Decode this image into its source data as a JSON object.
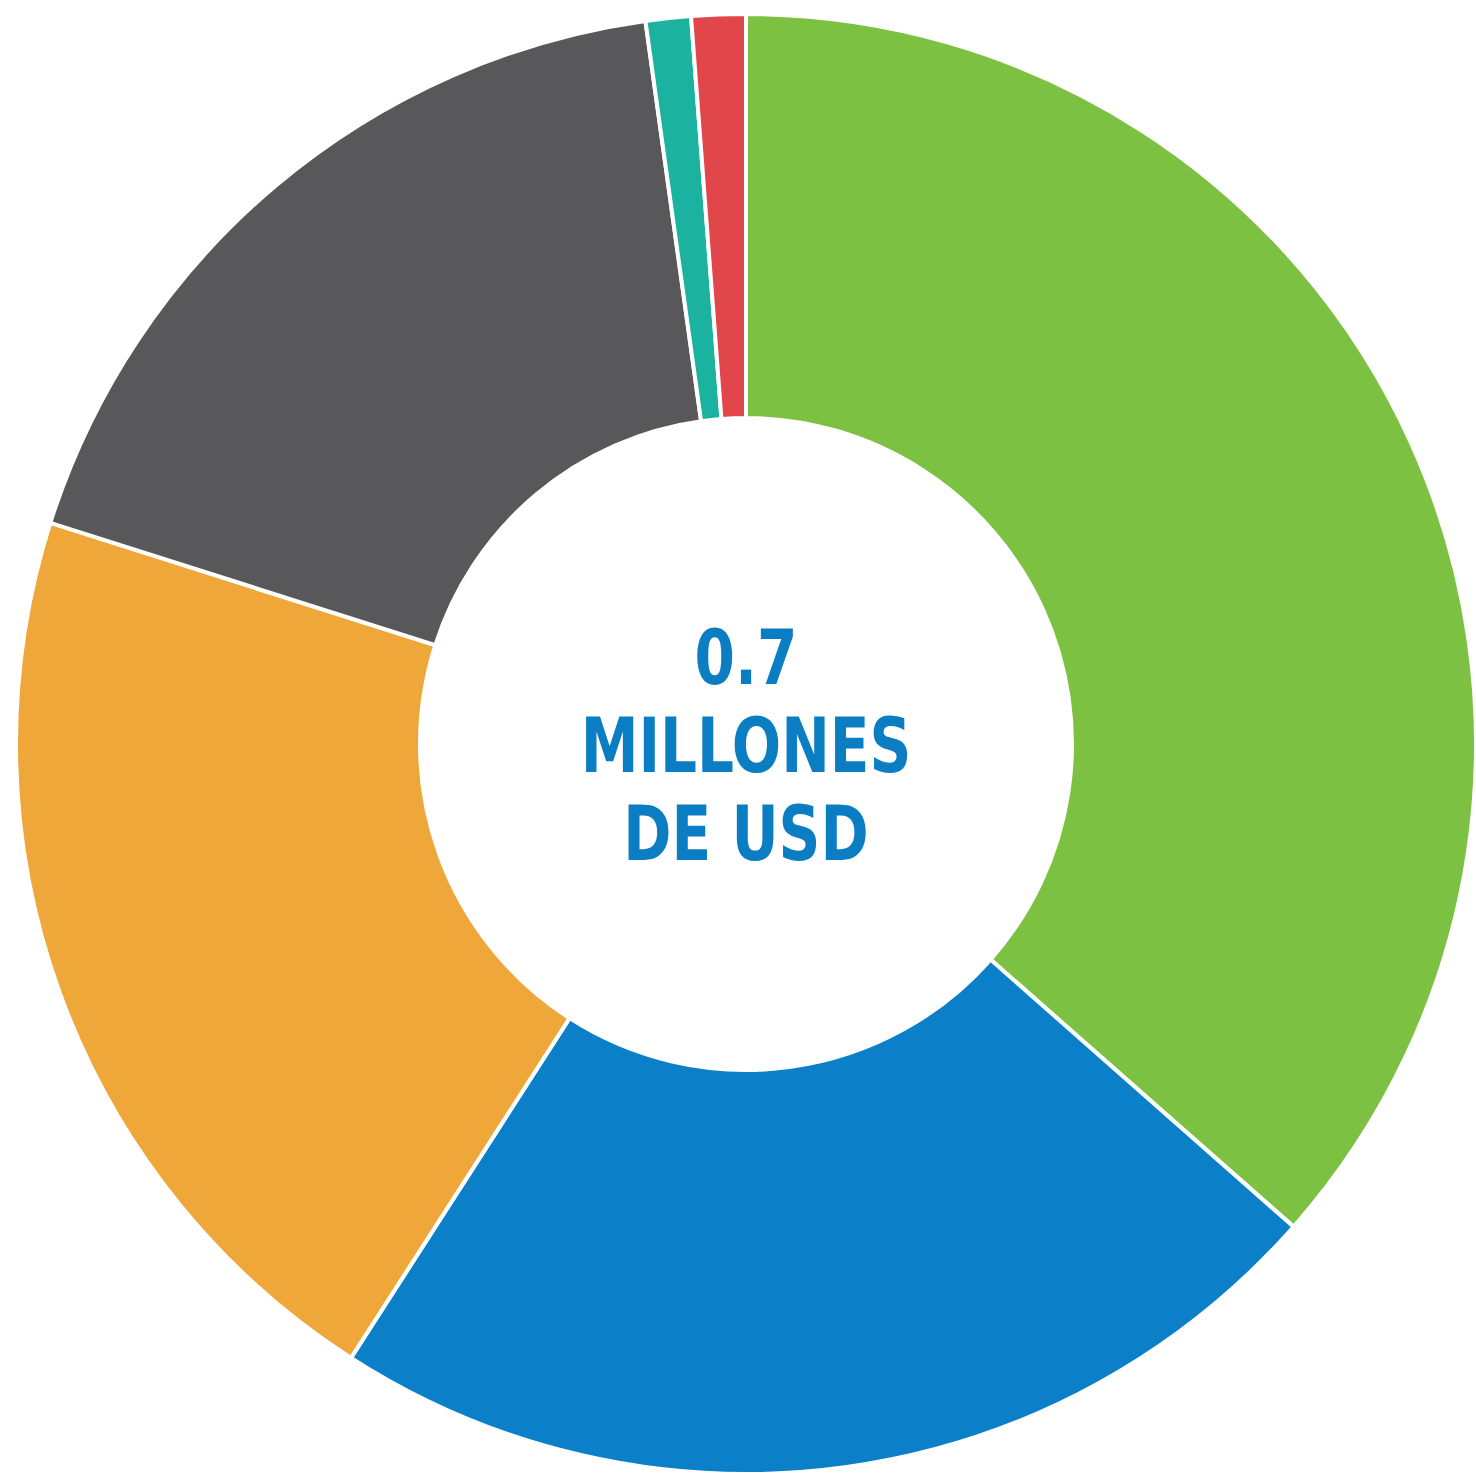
{
  "chart_data": {
    "type": "donut",
    "categories": [
      null,
      null,
      null,
      null,
      null,
      null
    ],
    "values": [
      36.5,
      22.6,
      20.8,
      17.9,
      1.0,
      1.2
    ],
    "colors": [
      "#7dc142",
      "#0b80c8",
      "#f0a73a",
      "#58585a",
      "#1bb3a0",
      "#e0464a"
    ],
    "annotations": [
      "0.7\nMILLONES\nDE USD"
    ]
  }
}
